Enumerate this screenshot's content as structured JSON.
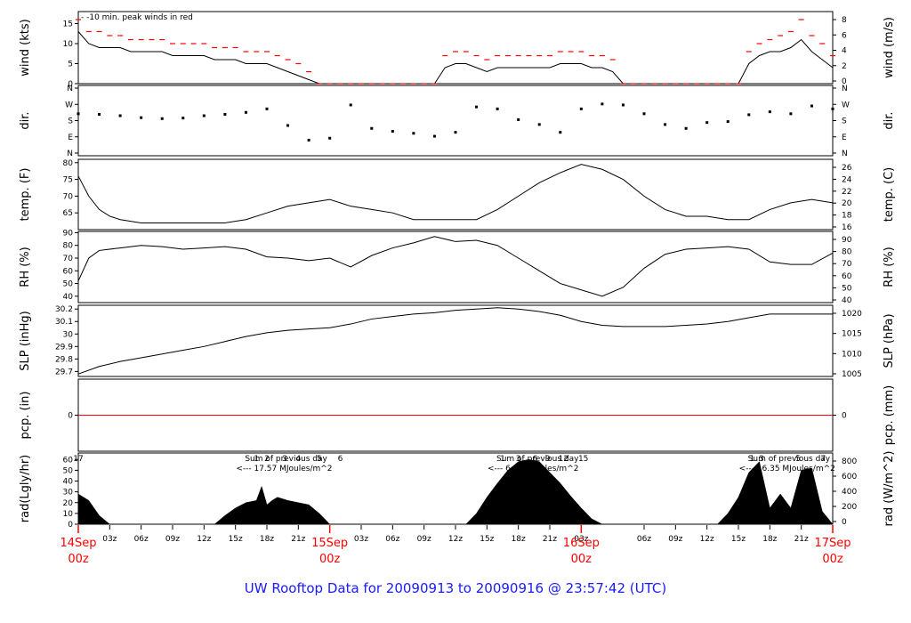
{
  "title": "UW Rooftop Data for 20090913  to  20090916 @ 23:57:42  (UTC)",
  "colors": {
    "data": "#000000",
    "peak": "#ff0000",
    "annot": "#aa22cc",
    "time": "#ff0000",
    "title": "#1a1aff"
  },
  "chart_data": {
    "type": "line",
    "x_axis": {
      "hour_ticks": [
        "03z",
        "06z",
        "09z",
        "12z",
        "15z",
        "18z",
        "21z",
        "03z",
        "06z",
        "09z",
        "12z",
        "15z",
        "18z",
        "21z",
        "03z",
        "06z",
        "09z",
        "12z",
        "15z",
        "18z",
        "21z"
      ],
      "days": [
        {
          "top": "14Sep",
          "bottom": "00z"
        },
        {
          "top": "15Sep",
          "bottom": "00z"
        },
        {
          "top": "16Sep",
          "bottom": "00z"
        },
        {
          "top": "17Sep",
          "bottom": "00z"
        }
      ],
      "range_hours": [
        0,
        72
      ]
    },
    "panels": [
      {
        "id": "wind",
        "left_label": "wind (kts)",
        "right_label": "wind (m/s)",
        "left_ticks": [
          0,
          5,
          10,
          15
        ],
        "ylim": [
          0,
          18
        ],
        "right_ticks": [
          "0",
          "2",
          "4",
          "6",
          "8"
        ],
        "annotation": "- -10 min. peak winds in red",
        "x": [
          0,
          1,
          2,
          3,
          4,
          5,
          6,
          7,
          8,
          9,
          10,
          11,
          12,
          13,
          14,
          15,
          16,
          17,
          18,
          19,
          20,
          21,
          22,
          23,
          24,
          25,
          26,
          27,
          28,
          29,
          30,
          31,
          32,
          33,
          34,
          35,
          36,
          37,
          38,
          39,
          40,
          41,
          42,
          43,
          44,
          45,
          46,
          47,
          48,
          49,
          50,
          51,
          52,
          53,
          54,
          55,
          56,
          57,
          58,
          59,
          60,
          61,
          62,
          63,
          64,
          65,
          66,
          67,
          68,
          69,
          70,
          71,
          72
        ],
        "values": [
          13,
          10,
          9,
          9,
          9,
          8,
          8,
          8,
          8,
          7,
          7,
          7,
          7,
          6,
          6,
          6,
          5,
          5,
          5,
          4,
          3,
          2,
          1,
          0,
          0,
          0,
          0,
          0,
          0,
          0,
          0,
          0,
          0,
          0,
          0,
          4,
          5,
          5,
          4,
          3,
          4,
          4,
          4,
          4,
          4,
          4,
          5,
          5,
          5,
          4,
          4,
          3,
          0,
          0,
          0,
          0,
          0,
          0,
          0,
          0,
          0,
          0,
          0,
          0,
          5,
          7,
          8,
          8,
          9,
          11,
          8,
          6,
          4
        ],
        "peak_values": [
          16,
          13,
          13,
          12,
          12,
          11,
          11,
          11,
          11,
          10,
          10,
          10,
          10,
          9,
          9,
          9,
          8,
          8,
          8,
          7,
          6,
          5,
          3,
          0,
          0,
          0,
          0,
          0,
          0,
          0,
          0,
          0,
          0,
          0,
          0,
          7,
          8,
          8,
          7,
          6,
          7,
          7,
          7,
          7,
          7,
          7,
          8,
          8,
          8,
          7,
          7,
          6,
          0,
          0,
          0,
          0,
          0,
          0,
          0,
          0,
          0,
          0,
          0,
          0,
          8,
          10,
          11,
          12,
          13,
          16,
          12,
          10,
          7
        ]
      },
      {
        "id": "dir",
        "left_label": "dir.",
        "right_label": "dir.",
        "left_ticks": [
          "N",
          "E",
          "S",
          "W",
          "N"
        ],
        "right_ticks": [
          "N",
          "E",
          "S",
          "W",
          "N"
        ],
        "ylim": [
          0,
          360
        ],
        "x": [
          0,
          2,
          4,
          6,
          8,
          10,
          12,
          14,
          16,
          18,
          20,
          22,
          24,
          26,
          28,
          30,
          32,
          34,
          36,
          38,
          40,
          42,
          44,
          46,
          48,
          50,
          52,
          54,
          56,
          58,
          60,
          62,
          64,
          66,
          68,
          70,
          72
        ],
        "values": [
          215,
          212,
          205,
          195,
          190,
          193,
          205,
          212,
          222,
          240,
          155,
          80,
          90,
          260,
          140,
          125,
          115,
          100,
          120,
          250,
          240,
          185,
          160,
          120,
          240,
          265,
          260,
          215,
          160,
          140,
          170,
          175,
          210,
          225,
          215,
          255,
          240
        ]
      },
      {
        "id": "temp",
        "left_label": "temp. (F)",
        "right_label": "temp. (C)",
        "left_ticks": [
          65,
          70,
          75,
          80
        ],
        "ylim": [
          60,
          81
        ],
        "right_ticks": [
          "16",
          "18",
          "20",
          "22",
          "24",
          "26"
        ],
        "x": [
          0,
          1,
          2,
          3,
          4,
          6,
          8,
          10,
          12,
          14,
          16,
          18,
          20,
          22,
          24,
          26,
          28,
          30,
          32,
          34,
          36,
          38,
          40,
          42,
          44,
          46,
          48,
          50,
          52,
          54,
          56,
          58,
          60,
          62,
          64,
          66,
          68,
          70,
          72
        ],
        "values": [
          76,
          70,
          66,
          64,
          63,
          62,
          62,
          62,
          62,
          62,
          63,
          65,
          67,
          68,
          69,
          67,
          66,
          65,
          63,
          63,
          63,
          63,
          66,
          70,
          74,
          77,
          79.5,
          78,
          75,
          70,
          66,
          64,
          64,
          63,
          63,
          66,
          68,
          69,
          68
        ]
      },
      {
        "id": "rh",
        "left_label": "RH (%)",
        "right_label": "RH (%)",
        "left_ticks": [
          40,
          50,
          60,
          70,
          80,
          90
        ],
        "ylim": [
          35,
          91
        ],
        "right_ticks": [
          "40",
          "50",
          "60",
          "70",
          "80",
          "90"
        ],
        "x": [
          0,
          1,
          2,
          4,
          6,
          8,
          10,
          12,
          14,
          16,
          18,
          20,
          22,
          24,
          26,
          28,
          30,
          32,
          34,
          36,
          38,
          40,
          42,
          44,
          46,
          48,
          50,
          52,
          54,
          56,
          58,
          60,
          62,
          64,
          66,
          68,
          70,
          72
        ],
        "values": [
          52,
          70,
          76,
          78,
          80,
          79,
          77,
          78,
          79,
          77,
          71,
          70,
          68,
          70,
          63,
          72,
          78,
          82,
          87,
          83,
          84,
          80,
          70,
          60,
          50,
          45,
          40,
          47,
          62,
          73,
          77,
          78,
          79,
          77,
          67,
          65,
          65,
          74
        ]
      },
      {
        "id": "slp",
        "left_label": "SLP (inHg)",
        "right_label": "SLP (hPa)",
        "left_ticks": [
          29.7,
          29.8,
          29.9,
          30.0,
          30.1,
          30.2
        ],
        "ylim": [
          29.66,
          30.23
        ],
        "right_ticks": [
          "1005",
          "1010",
          "1015",
          "1020"
        ],
        "x": [
          0,
          2,
          4,
          6,
          8,
          10,
          12,
          14,
          16,
          18,
          20,
          22,
          24,
          26,
          28,
          30,
          32,
          34,
          36,
          38,
          40,
          42,
          44,
          46,
          48,
          50,
          52,
          54,
          56,
          58,
          60,
          62,
          64,
          66,
          68,
          70,
          72
        ],
        "values": [
          29.68,
          29.74,
          29.78,
          29.81,
          29.84,
          29.87,
          29.9,
          29.94,
          29.98,
          30.01,
          30.03,
          30.04,
          30.05,
          30.08,
          30.12,
          30.14,
          30.16,
          30.17,
          30.19,
          30.2,
          30.21,
          30.2,
          30.18,
          30.15,
          30.1,
          30.07,
          30.06,
          30.06,
          30.06,
          30.07,
          30.08,
          30.1,
          30.13,
          30.16,
          30.16,
          30.16,
          30.16
        ]
      },
      {
        "id": "pcp",
        "left_label": "pcp. (in)",
        "right_label": "pcp. (mm)",
        "left_ticks": [
          0
        ],
        "right_ticks": [
          "0"
        ],
        "ylim": [
          -1,
          1
        ],
        "x": [
          0,
          72
        ],
        "values": [
          0,
          0
        ]
      },
      {
        "id": "rad",
        "left_label": "rad(Lgly/hr)",
        "right_label": "rad (W/m^2)",
        "left_ticks": [
          0,
          10,
          20,
          30,
          40,
          50,
          60
        ],
        "ylim": [
          0,
          66
        ],
        "right_ticks": [
          "0",
          "200",
          "400",
          "600",
          "800"
        ],
        "x": [
          0,
          0.5,
          1,
          2,
          3,
          13,
          14,
          15,
          16,
          17,
          17.5,
          18,
          18.5,
          19,
          20,
          21,
          22,
          23,
          24,
          37,
          38,
          39,
          40,
          41,
          42,
          43,
          44,
          45,
          46,
          47,
          48,
          49,
          50,
          61,
          62,
          63,
          64,
          65,
          66,
          67,
          68,
          69,
          70,
          71,
          72
        ],
        "values": [
          28,
          25,
          22,
          8,
          0,
          0,
          8,
          15,
          20,
          22,
          35,
          18,
          22,
          25,
          22,
          20,
          18,
          10,
          0,
          0,
          10,
          25,
          38,
          50,
          58,
          60,
          58,
          48,
          38,
          26,
          15,
          5,
          0,
          0,
          10,
          25,
          48,
          58,
          15,
          28,
          15,
          50,
          52,
          12,
          0
        ],
        "annotations": {
          "tick_numbers": [
            {
              "hour": 0,
              "label": "17"
            },
            {
              "hour": 17,
              "label": "1"
            },
            {
              "hour": 18,
              "label": "2"
            },
            {
              "hour": 19.7,
              "label": "3"
            },
            {
              "hour": 21,
              "label": "4"
            },
            {
              "hour": 23,
              "label": "5"
            },
            {
              "hour": 25,
              "label": "6"
            },
            {
              "hour": 40.5,
              "label": "1"
            },
            {
              "hour": 42,
              "label": "3"
            },
            {
              "hour": 43.6,
              "label": "6"
            },
            {
              "hour": 44.8,
              "label": "9"
            },
            {
              "hour": 46.3,
              "label": "12"
            },
            {
              "hour": 48.2,
              "label": "15"
            },
            {
              "hour": 64.3,
              "label": "1"
            },
            {
              "hour": 65.2,
              "label": "3"
            },
            {
              "hour": 68.7,
              "label": "5"
            },
            {
              "hour": 71.1,
              "label": "7"
            }
          ],
          "sums": [
            {
              "line1": "Sum of previous day",
              "line2": "<--- 17.57 MJoules/m^2"
            },
            {
              "line1": "Sum of previous day",
              "line2": "<--- 6.19 MJoules/m^2"
            },
            {
              "line1": "Sum of previous day",
              "line2": "<--- 16.35 MJoules/m^2"
            }
          ]
        }
      }
    ]
  }
}
